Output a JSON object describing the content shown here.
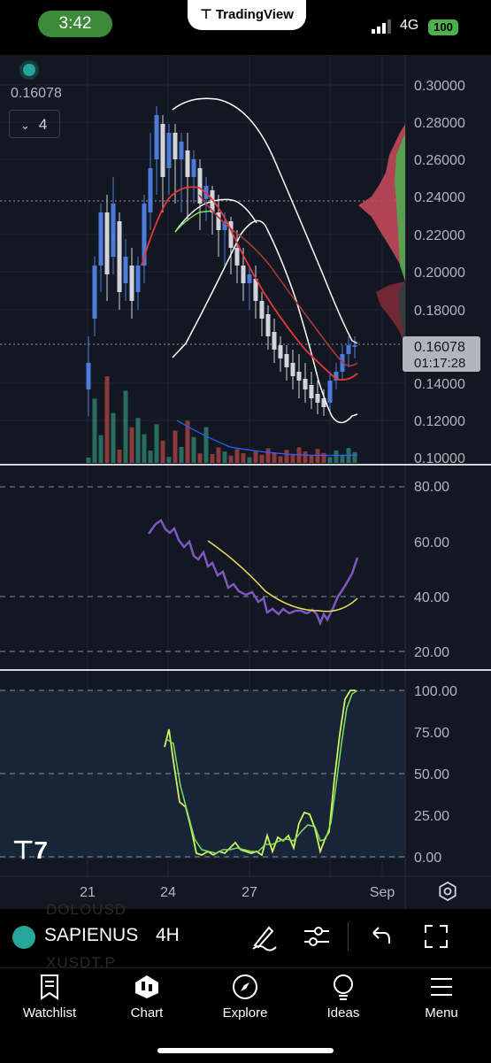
{
  "status_bar": {
    "time": "3:42",
    "app_banner": "TradingView",
    "network": "4G",
    "battery": "100"
  },
  "chart": {
    "current_price": "0.16078",
    "interval_collapse_count": "4",
    "price_tag": {
      "price": "0.16078",
      "countdown": "01:17:28"
    },
    "price_axis": [
      "0.30000",
      "0.28000",
      "0.26000",
      "0.24000",
      "0.22000",
      "0.20000",
      "0.18000",
      "0.16000",
      "0.14000",
      "0.12000",
      "0.10000"
    ],
    "rsi_axis": [
      "80.00",
      "60.00",
      "40.00",
      "20.00"
    ],
    "stoch_axis": [
      "100.00",
      "75.00",
      "50.00",
      "25.00",
      "0.00"
    ],
    "time_axis": [
      "21",
      "24",
      "27",
      "Sep"
    ],
    "colors": {
      "up": "#4c7bd9",
      "down": "#d1d4dc",
      "rsi": "#7e57c2",
      "rsi_ma": "#e8e05a",
      "stoch_k": "#d4f05a",
      "stoch_d": "#7ee05a",
      "ma_red": "#e53935"
    }
  },
  "toolbar": {
    "symbol": "SAPIENUS",
    "interval": "4H",
    "ghost_top": "DOLOUSD",
    "ghost_bottom": "XUSDT.P"
  },
  "tabs": [
    {
      "label": "Watchlist",
      "icon": "bookmark-icon"
    },
    {
      "label": "Chart",
      "icon": "chart-candles-icon"
    },
    {
      "label": "Explore",
      "icon": "compass-icon"
    },
    {
      "label": "Ideas",
      "icon": "lightbulb-icon"
    },
    {
      "label": "Menu",
      "icon": "hamburger-icon"
    }
  ]
}
